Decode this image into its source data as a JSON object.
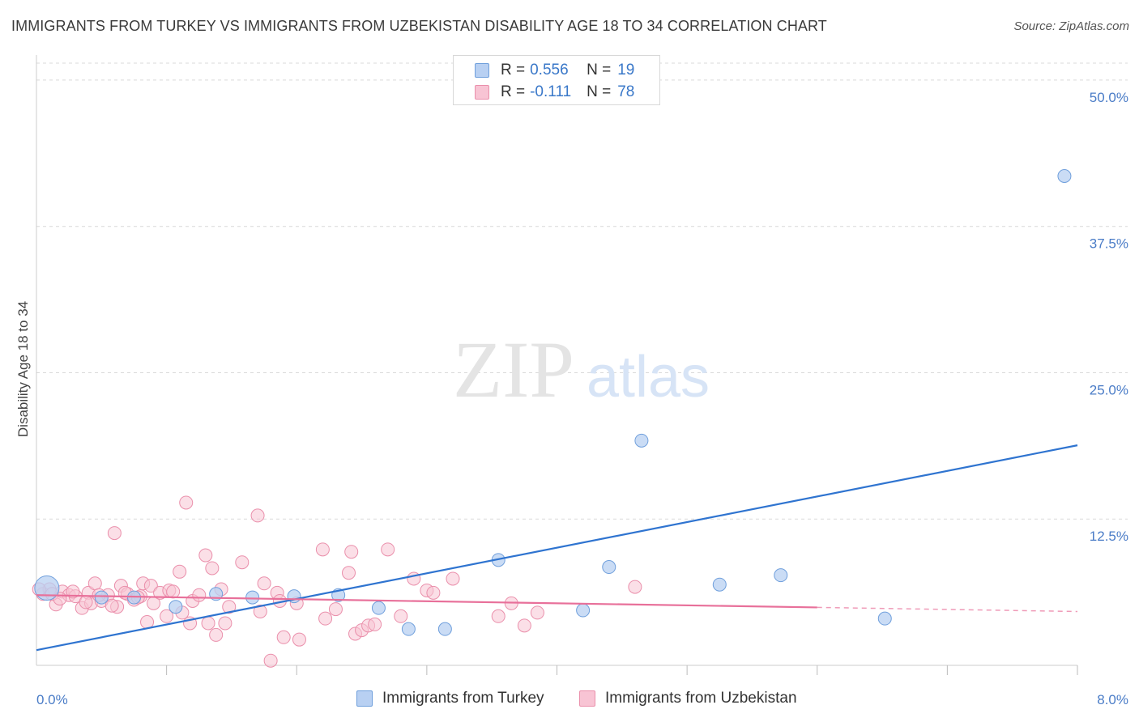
{
  "header": {
    "title": "IMMIGRANTS FROM TURKEY VS IMMIGRANTS FROM UZBEKISTAN DISABILITY AGE 18 TO 34 CORRELATION CHART",
    "source": "Source: ZipAtlas.com"
  },
  "watermark": {
    "zip": "ZIP",
    "atlas": "atlas"
  },
  "legend_top": {
    "rows": [
      {
        "r_label": "R =",
        "r_value": "0.556",
        "n_label": "N =",
        "n_value": "19",
        "color": "#b8d0f2"
      },
      {
        "r_label": "R =",
        "r_value": "-0.111",
        "n_label": "N =",
        "n_value": "78",
        "color": "#f8c4d4"
      }
    ]
  },
  "legend_bottom": {
    "items": [
      {
        "label": "Immigrants from Turkey",
        "color": "#b8d0f2"
      },
      {
        "label": "Immigrants from Uzbekistan",
        "color": "#f8c4d4"
      }
    ]
  },
  "colors": {
    "turkey_fill": "#b8d0f2",
    "turkey_stroke": "#6f9fdc",
    "turkey_line": "#2f74d0",
    "uzbek_fill": "#f8c4d4",
    "uzbek_stroke": "#ea8fab",
    "uzbek_line": "#e8709a",
    "grid": "#d9d9d9",
    "tick_text": "#4a7cc7"
  },
  "chart_data": {
    "type": "scatter",
    "title": "IMMIGRANTS FROM TURKEY VS IMMIGRANTS FROM UZBEKISTAN DISABILITY AGE 18 TO 34 CORRELATION CHART",
    "xlabel": "",
    "ylabel": "Disability Age 18 to 34",
    "xlim": [
      0,
      8
    ],
    "ylim": [
      0,
      52
    ],
    "x_tick_labels": [
      {
        "value": 0,
        "label": "0.0%"
      },
      {
        "value": 8,
        "label": "8.0%"
      }
    ],
    "y_ticks": [
      {
        "value": 12.5,
        "label": "12.5%"
      },
      {
        "value": 25,
        "label": "25.0%"
      },
      {
        "value": 37.5,
        "label": "37.5%"
      },
      {
        "value": 50,
        "label": "50.0%"
      }
    ],
    "grid": true,
    "legend_position": "top-center",
    "series": [
      {
        "name": "Immigrants from Turkey",
        "points": [
          [
            0.08,
            6.6
          ],
          [
            0.75,
            5.8
          ],
          [
            1.07,
            5.0
          ],
          [
            1.38,
            6.1
          ],
          [
            1.66,
            5.8
          ],
          [
            1.98,
            5.9
          ],
          [
            2.32,
            6.0
          ],
          [
            2.63,
            4.9
          ],
          [
            2.86,
            3.1
          ],
          [
            3.14,
            3.1
          ],
          [
            3.55,
            9.0
          ],
          [
            4.2,
            4.7
          ],
          [
            4.4,
            8.4
          ],
          [
            4.65,
            19.2
          ],
          [
            5.25,
            6.9
          ],
          [
            5.72,
            7.7
          ],
          [
            6.52,
            4.0
          ],
          [
            7.9,
            41.8
          ],
          [
            0.5,
            5.8
          ]
        ],
        "trend": {
          "x": [
            0,
            8
          ],
          "y": [
            1.3,
            18.8
          ],
          "dashed_from": null
        }
      },
      {
        "name": "Immigrants from Uzbekistan",
        "points": [
          [
            0.05,
            6.1
          ],
          [
            0.1,
            6.5
          ],
          [
            0.15,
            5.2
          ],
          [
            0.2,
            6.3
          ],
          [
            0.25,
            6.0
          ],
          [
            0.3,
            5.9
          ],
          [
            0.35,
            4.9
          ],
          [
            0.4,
            6.2
          ],
          [
            0.42,
            5.3
          ],
          [
            0.45,
            7.0
          ],
          [
            0.5,
            5.5
          ],
          [
            0.55,
            6.0
          ],
          [
            0.6,
            11.3
          ],
          [
            0.62,
            5.0
          ],
          [
            0.65,
            6.8
          ],
          [
            0.7,
            6.1
          ],
          [
            0.75,
            5.6
          ],
          [
            0.8,
            5.9
          ],
          [
            0.82,
            7.0
          ],
          [
            0.85,
            3.7
          ],
          [
            0.88,
            6.8
          ],
          [
            0.9,
            5.3
          ],
          [
            0.95,
            6.2
          ],
          [
            1.0,
            4.2
          ],
          [
            1.02,
            6.4
          ],
          [
            1.05,
            6.3
          ],
          [
            1.1,
            8.0
          ],
          [
            1.12,
            4.5
          ],
          [
            1.15,
            13.9
          ],
          [
            1.18,
            3.6
          ],
          [
            1.2,
            5.5
          ],
          [
            1.3,
            9.4
          ],
          [
            1.32,
            3.6
          ],
          [
            1.35,
            8.3
          ],
          [
            1.38,
            2.6
          ],
          [
            1.42,
            6.5
          ],
          [
            1.45,
            3.6
          ],
          [
            1.48,
            5.0
          ],
          [
            1.58,
            8.8
          ],
          [
            1.7,
            12.8
          ],
          [
            1.72,
            4.6
          ],
          [
            1.75,
            7.0
          ],
          [
            1.8,
            0.4
          ],
          [
            1.85,
            6.2
          ],
          [
            1.87,
            5.5
          ],
          [
            1.9,
            2.4
          ],
          [
            2.0,
            5.3
          ],
          [
            2.02,
            2.2
          ],
          [
            2.2,
            9.9
          ],
          [
            2.22,
            4.0
          ],
          [
            2.3,
            4.8
          ],
          [
            2.4,
            7.9
          ],
          [
            2.42,
            9.7
          ],
          [
            2.45,
            2.7
          ],
          [
            2.5,
            3.0
          ],
          [
            2.55,
            3.4
          ],
          [
            2.6,
            3.5
          ],
          [
            2.7,
            9.9
          ],
          [
            2.8,
            4.2
          ],
          [
            2.9,
            7.4
          ],
          [
            3.0,
            6.4
          ],
          [
            3.05,
            6.2
          ],
          [
            3.2,
            7.4
          ],
          [
            3.55,
            4.2
          ],
          [
            3.65,
            5.3
          ],
          [
            3.75,
            3.4
          ],
          [
            3.85,
            4.5
          ],
          [
            4.6,
            6.7
          ],
          [
            0.02,
            6.5
          ],
          [
            0.12,
            6.1
          ],
          [
            0.18,
            5.7
          ],
          [
            0.28,
            6.3
          ],
          [
            0.38,
            5.4
          ],
          [
            0.48,
            6.0
          ],
          [
            0.58,
            5.1
          ],
          [
            0.68,
            6.2
          ],
          [
            0.78,
            5.8
          ],
          [
            1.25,
            6.0
          ]
        ],
        "trend": {
          "x": [
            0,
            8
          ],
          "y": [
            6.0,
            4.6
          ],
          "dashed_from": 6.0
        }
      }
    ]
  }
}
